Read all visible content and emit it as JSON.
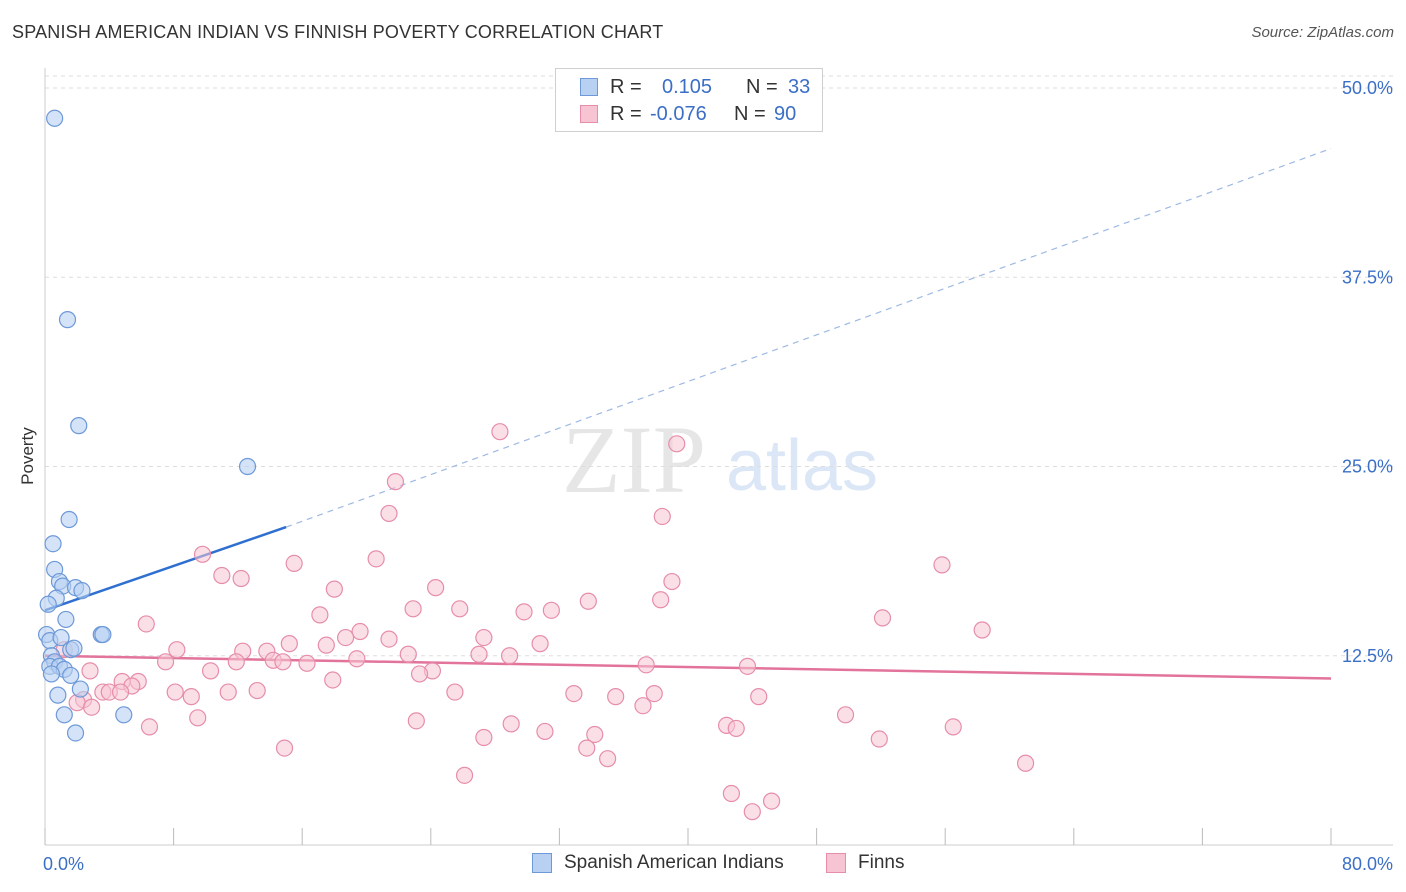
{
  "header": {
    "title": "SPANISH AMERICAN INDIAN VS FINNISH POVERTY CORRELATION CHART",
    "source": "Source: ZipAtlas.com"
  },
  "watermark": {
    "zip": "ZIP",
    "atlas": "atlas"
  },
  "colors": {
    "blue_fill": "#b8d0f2",
    "blue_stroke": "#6d99d8",
    "blue_line": "#2e6fd0",
    "pink_fill": "#f7c4d4",
    "pink_stroke": "#e68daa",
    "pink_line": "#e2739a",
    "axis_text": "#3b6fc6",
    "grid": "#dddddd"
  },
  "legend": {
    "rows": [
      {
        "r_label": "R =",
        "r_value": "0.105",
        "n_label": "N =",
        "n_value": "33"
      },
      {
        "r_label": "R =",
        "r_value": "-0.076",
        "n_label": "N =",
        "n_value": "90"
      }
    ]
  },
  "bottom_legend": {
    "series1": "Spanish American Indians",
    "series2": "Finns"
  },
  "chart_data": {
    "type": "scatter",
    "title": "SPANISH AMERICAN INDIAN VS FINNISH POVERTY CORRELATION CHART",
    "xlabel": "",
    "ylabel": "Poverty",
    "xlim": [
      0,
      80
    ],
    "ylim": [
      0,
      50
    ],
    "x_tick_labels": [
      "0.0%",
      "80.0%"
    ],
    "y_ticks": [
      12.5,
      25.0,
      37.5,
      50.0
    ],
    "y_tick_labels": [
      "12.5%",
      "25.0%",
      "37.5%",
      "50.0%"
    ],
    "grid": true,
    "legend_position": "top-center",
    "series": [
      {
        "name": "Spanish American Indians",
        "r": 0.105,
        "n": 33,
        "trend": {
          "x": [
            0,
            15
          ],
          "y": [
            15.5,
            21.0
          ],
          "extended_to": [
            80,
            46.0
          ]
        },
        "points": [
          [
            0.6,
            48.0
          ],
          [
            1.4,
            34.7
          ],
          [
            2.1,
            27.7
          ],
          [
            12.6,
            25.0
          ],
          [
            1.5,
            21.5
          ],
          [
            0.5,
            19.9
          ],
          [
            0.6,
            18.2
          ],
          [
            0.9,
            17.4
          ],
          [
            1.1,
            17.1
          ],
          [
            1.9,
            17.0
          ],
          [
            2.3,
            16.8
          ],
          [
            0.7,
            16.3
          ],
          [
            0.2,
            15.9
          ],
          [
            1.3,
            14.9
          ],
          [
            3.5,
            13.9
          ],
          [
            3.6,
            13.9
          ],
          [
            0.1,
            13.9
          ],
          [
            0.3,
            13.5
          ],
          [
            1.0,
            13.7
          ],
          [
            1.6,
            12.9
          ],
          [
            1.8,
            13.0
          ],
          [
            0.4,
            12.5
          ],
          [
            0.6,
            12.1
          ],
          [
            0.3,
            11.8
          ],
          [
            0.9,
            11.8
          ],
          [
            1.2,
            11.6
          ],
          [
            0.4,
            11.3
          ],
          [
            1.6,
            11.2
          ],
          [
            2.2,
            10.3
          ],
          [
            0.8,
            9.9
          ],
          [
            1.2,
            8.6
          ],
          [
            4.9,
            8.6
          ],
          [
            1.9,
            7.4
          ]
        ]
      },
      {
        "name": "Finns",
        "r": -0.076,
        "n": 90,
        "trend": {
          "x": [
            0,
            80
          ],
          "y": [
            12.5,
            11.0
          ]
        },
        "points": [
          [
            28.3,
            27.3
          ],
          [
            39.3,
            26.5
          ],
          [
            21.8,
            24.0
          ],
          [
            21.4,
            21.9
          ],
          [
            38.4,
            21.7
          ],
          [
            9.8,
            19.2
          ],
          [
            15.5,
            18.6
          ],
          [
            20.6,
            18.9
          ],
          [
            55.8,
            18.5
          ],
          [
            12.2,
            17.6
          ],
          [
            11.0,
            17.8
          ],
          [
            39.0,
            17.4
          ],
          [
            18.0,
            16.9
          ],
          [
            24.3,
            17.0
          ],
          [
            33.8,
            16.1
          ],
          [
            38.3,
            16.2
          ],
          [
            22.9,
            15.6
          ],
          [
            25.8,
            15.6
          ],
          [
            29.8,
            15.4
          ],
          [
            31.5,
            15.5
          ],
          [
            17.1,
            15.2
          ],
          [
            52.1,
            15.0
          ],
          [
            6.3,
            14.6
          ],
          [
            58.3,
            14.2
          ],
          [
            19.6,
            14.1
          ],
          [
            18.7,
            13.7
          ],
          [
            21.4,
            13.6
          ],
          [
            27.3,
            13.7
          ],
          [
            8.2,
            12.9
          ],
          [
            15.2,
            13.3
          ],
          [
            17.5,
            13.2
          ],
          [
            30.8,
            13.3
          ],
          [
            12.3,
            12.8
          ],
          [
            13.8,
            12.8
          ],
          [
            22.6,
            12.6
          ],
          [
            27.0,
            12.6
          ],
          [
            28.9,
            12.5
          ],
          [
            19.4,
            12.3
          ],
          [
            14.2,
            12.2
          ],
          [
            14.8,
            12.1
          ],
          [
            7.5,
            12.1
          ],
          [
            11.9,
            12.1
          ],
          [
            16.3,
            12.0
          ],
          [
            37.4,
            11.9
          ],
          [
            43.7,
            11.8
          ],
          [
            2.8,
            11.5
          ],
          [
            10.3,
            11.5
          ],
          [
            24.1,
            11.5
          ],
          [
            23.3,
            11.3
          ],
          [
            1.2,
            12.9
          ],
          [
            4.8,
            10.8
          ],
          [
            5.8,
            10.8
          ],
          [
            17.9,
            10.9
          ],
          [
            5.4,
            10.5
          ],
          [
            3.6,
            10.1
          ],
          [
            4.0,
            10.1
          ],
          [
            4.7,
            10.1
          ],
          [
            8.1,
            10.1
          ],
          [
            11.4,
            10.1
          ],
          [
            13.2,
            10.2
          ],
          [
            25.5,
            10.1
          ],
          [
            32.9,
            10.0
          ],
          [
            35.5,
            9.8
          ],
          [
            37.9,
            10.0
          ],
          [
            44.4,
            9.8
          ],
          [
            9.1,
            9.8
          ],
          [
            2.4,
            9.6
          ],
          [
            2.0,
            9.4
          ],
          [
            2.9,
            9.1
          ],
          [
            37.2,
            9.2
          ],
          [
            49.8,
            8.6
          ],
          [
            9.5,
            8.4
          ],
          [
            23.1,
            8.2
          ],
          [
            29.0,
            8.0
          ],
          [
            42.4,
            7.9
          ],
          [
            43.0,
            7.7
          ],
          [
            56.5,
            7.8
          ],
          [
            6.5,
            7.8
          ],
          [
            31.1,
            7.5
          ],
          [
            34.2,
            7.3
          ],
          [
            27.3,
            7.1
          ],
          [
            51.9,
            7.0
          ],
          [
            14.9,
            6.4
          ],
          [
            33.7,
            6.4
          ],
          [
            35.0,
            5.7
          ],
          [
            61.0,
            5.4
          ],
          [
            26.1,
            4.6
          ],
          [
            42.7,
            3.4
          ],
          [
            45.2,
            2.9
          ],
          [
            44.0,
            2.2
          ]
        ]
      }
    ]
  }
}
